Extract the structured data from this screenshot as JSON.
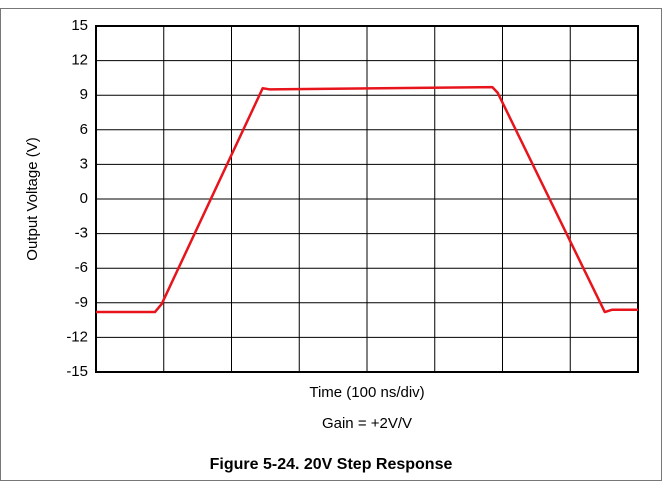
{
  "chart_data": {
    "type": "line",
    "title": "Figure 5-24. 20V Step Response",
    "subtitle": "Gain = +2V/V",
    "x_label": "Time (100 ns/div)",
    "y_label": "Output Voltage (V)",
    "xlim": [
      0,
      8
    ],
    "xticks": [
      0,
      1,
      2,
      3,
      4,
      5,
      6,
      7,
      8
    ],
    "ylim": [
      -15,
      15
    ],
    "yticks": [
      -15,
      -12,
      -9,
      -6,
      -3,
      0,
      3,
      6,
      9,
      12,
      15
    ],
    "grid": true,
    "series": [
      {
        "name": "Output",
        "color": "#e8141c",
        "x": [
          0,
          0.87,
          0.97,
          2.46,
          2.57,
          5.85,
          5.93,
          7.51,
          7.62,
          8
        ],
        "values": [
          -9.8,
          -9.8,
          -9.1,
          9.6,
          9.5,
          9.7,
          9.2,
          -9.8,
          -9.6,
          -9.6
        ]
      }
    ]
  }
}
